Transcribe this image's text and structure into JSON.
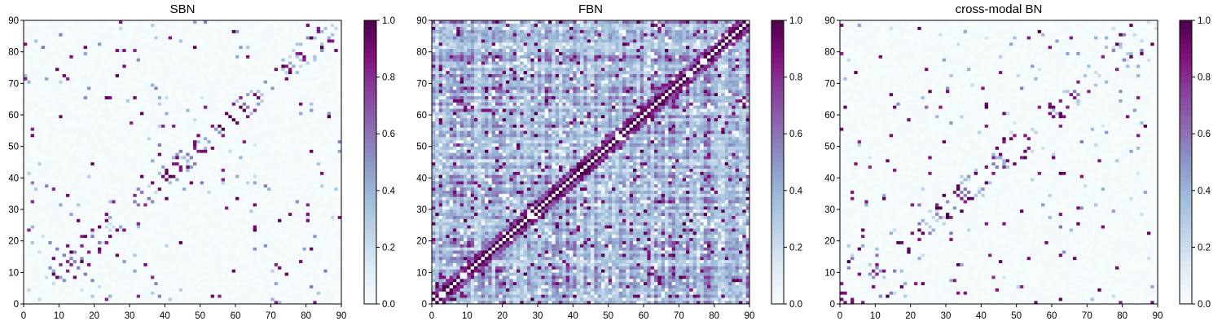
{
  "chart_data": [
    {
      "type": "heatmap",
      "title": "SBN",
      "size": 90,
      "xlim": [
        0,
        90
      ],
      "ylim": [
        0,
        90
      ],
      "xticks": [
        "0",
        "10",
        "20",
        "30",
        "40",
        "50",
        "60",
        "70",
        "80",
        "90"
      ],
      "yticks": [
        "0",
        "10",
        "20",
        "30",
        "40",
        "50",
        "60",
        "70",
        "80",
        "90"
      ],
      "colorbar": {
        "range": [
          0.0,
          1.0
        ],
        "ticks": [
          "0.0",
          "0.2",
          "0.4",
          "0.6",
          "0.8",
          "1.0"
        ]
      },
      "pattern": "sparse-symmetric",
      "seed": 11
    },
    {
      "type": "heatmap",
      "title": "FBN",
      "size": 90,
      "xlim": [
        0,
        90
      ],
      "ylim": [
        0,
        90
      ],
      "xticks": [
        "0",
        "10",
        "20",
        "30",
        "40",
        "50",
        "60",
        "70",
        "80",
        "90"
      ],
      "yticks": [
        "0",
        "10",
        "20",
        "30",
        "40",
        "50",
        "60",
        "70",
        "80",
        "90"
      ],
      "colorbar": {
        "range": [
          0.0,
          1.0
        ],
        "ticks": [
          "0.0",
          "0.2",
          "0.4",
          "0.6",
          "0.8",
          "1.0"
        ]
      },
      "pattern": "dense-symmetric",
      "seed": 29
    },
    {
      "type": "heatmap",
      "title": "cross-modal BN",
      "size": 90,
      "xlim": [
        0,
        90
      ],
      "ylim": [
        0,
        90
      ],
      "xticks": [
        "0",
        "10",
        "20",
        "30",
        "40",
        "50",
        "60",
        "70",
        "80",
        "90"
      ],
      "yticks": [
        "0",
        "10",
        "20",
        "30",
        "40",
        "50",
        "60",
        "70",
        "80",
        "90"
      ],
      "colorbar": {
        "range": [
          0.0,
          1.0
        ],
        "ticks": [
          "0.0",
          "0.2",
          "0.4",
          "0.6",
          "0.8",
          "1.0"
        ]
      },
      "pattern": "sparse-symmetric",
      "seed": 47
    }
  ],
  "colors": {
    "colormap": [
      "#f7fcfd",
      "#e0ecf4",
      "#bfd3e6",
      "#9ebcda",
      "#8c96c6",
      "#8c6bb1",
      "#88419d",
      "#810f7c",
      "#4d004b"
    ],
    "axis": "#000000"
  }
}
